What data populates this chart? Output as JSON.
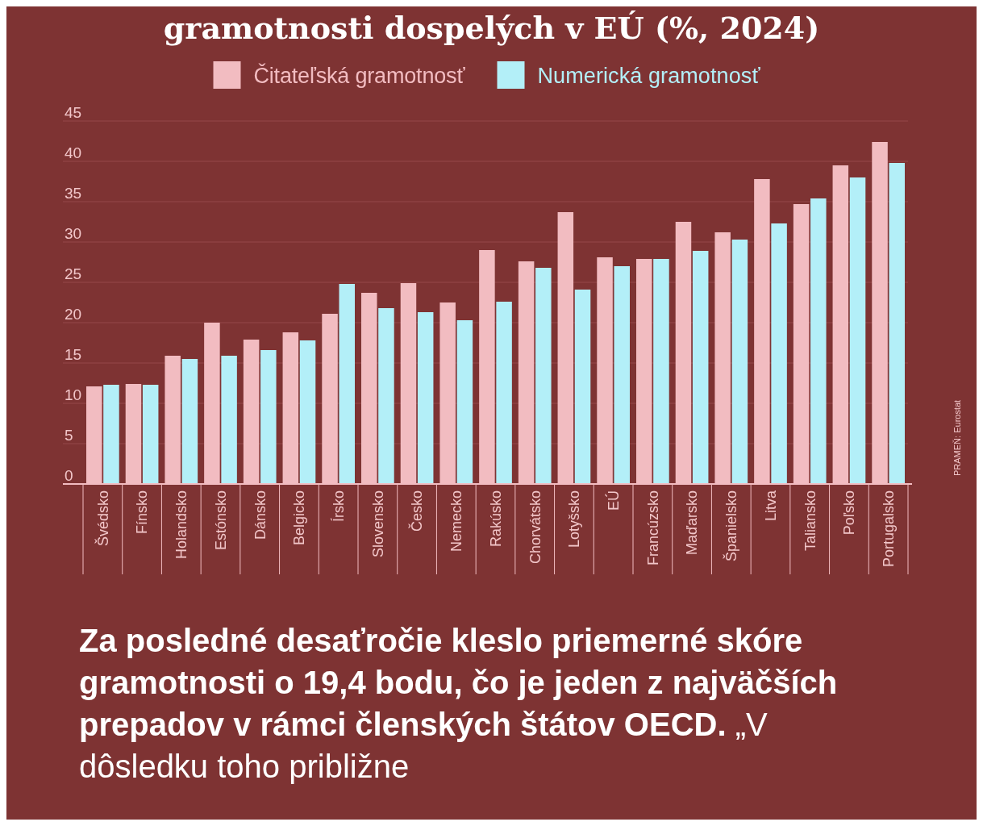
{
  "chart_data": {
    "type": "bar",
    "title": "gramotnosti dospelých v EÚ (%, 2024)",
    "categories": [
      "Švédsko",
      "Fínsko",
      "Holandsko",
      "Estónsko",
      "Dánsko",
      "Belgicko",
      "Írsko",
      "Slovensko",
      "Česko",
      "Nemecko",
      "Rakúsko",
      "Chorvátsko",
      "Lotyšsko",
      "EÚ",
      "Francúzsko",
      "Maďarsko",
      "Španielsko",
      "Litva",
      "Taliansko",
      "Poľsko",
      "Portugalsko"
    ],
    "series": [
      {
        "name": "Čitateľská gramotnosť",
        "color": "#f2bcc1",
        "values": [
          12.1,
          12.4,
          15.9,
          20.0,
          17.9,
          18.8,
          21.1,
          23.7,
          24.9,
          22.5,
          29.0,
          27.6,
          33.7,
          28.1,
          27.9,
          32.5,
          31.2,
          37.8,
          34.7,
          39.5,
          42.4
        ]
      },
      {
        "name": "Numerická gramotnosť",
        "color": "#b3eff8",
        "values": [
          12.3,
          12.3,
          15.5,
          15.9,
          16.6,
          17.8,
          24.8,
          21.8,
          21.3,
          20.3,
          22.6,
          26.8,
          24.1,
          27.0,
          27.9,
          28.9,
          30.3,
          32.3,
          35.4,
          38.0,
          39.8
        ]
      }
    ],
    "ylim": [
      0,
      45
    ],
    "yticks": [
      0,
      5,
      10,
      15,
      20,
      25,
      30,
      35,
      40,
      45
    ],
    "grid": "y",
    "legend": "top",
    "annotations": [
      "PRAMEŇ: Eurostat",
      "Za posledné desaťročie kleslo priemerné skóre gramotnosti o 19,4 bodu, čo je jeden z najväčších prepadov v rámci členských štátov OECD.",
      "„V dôsledku toho približne"
    ]
  }
}
